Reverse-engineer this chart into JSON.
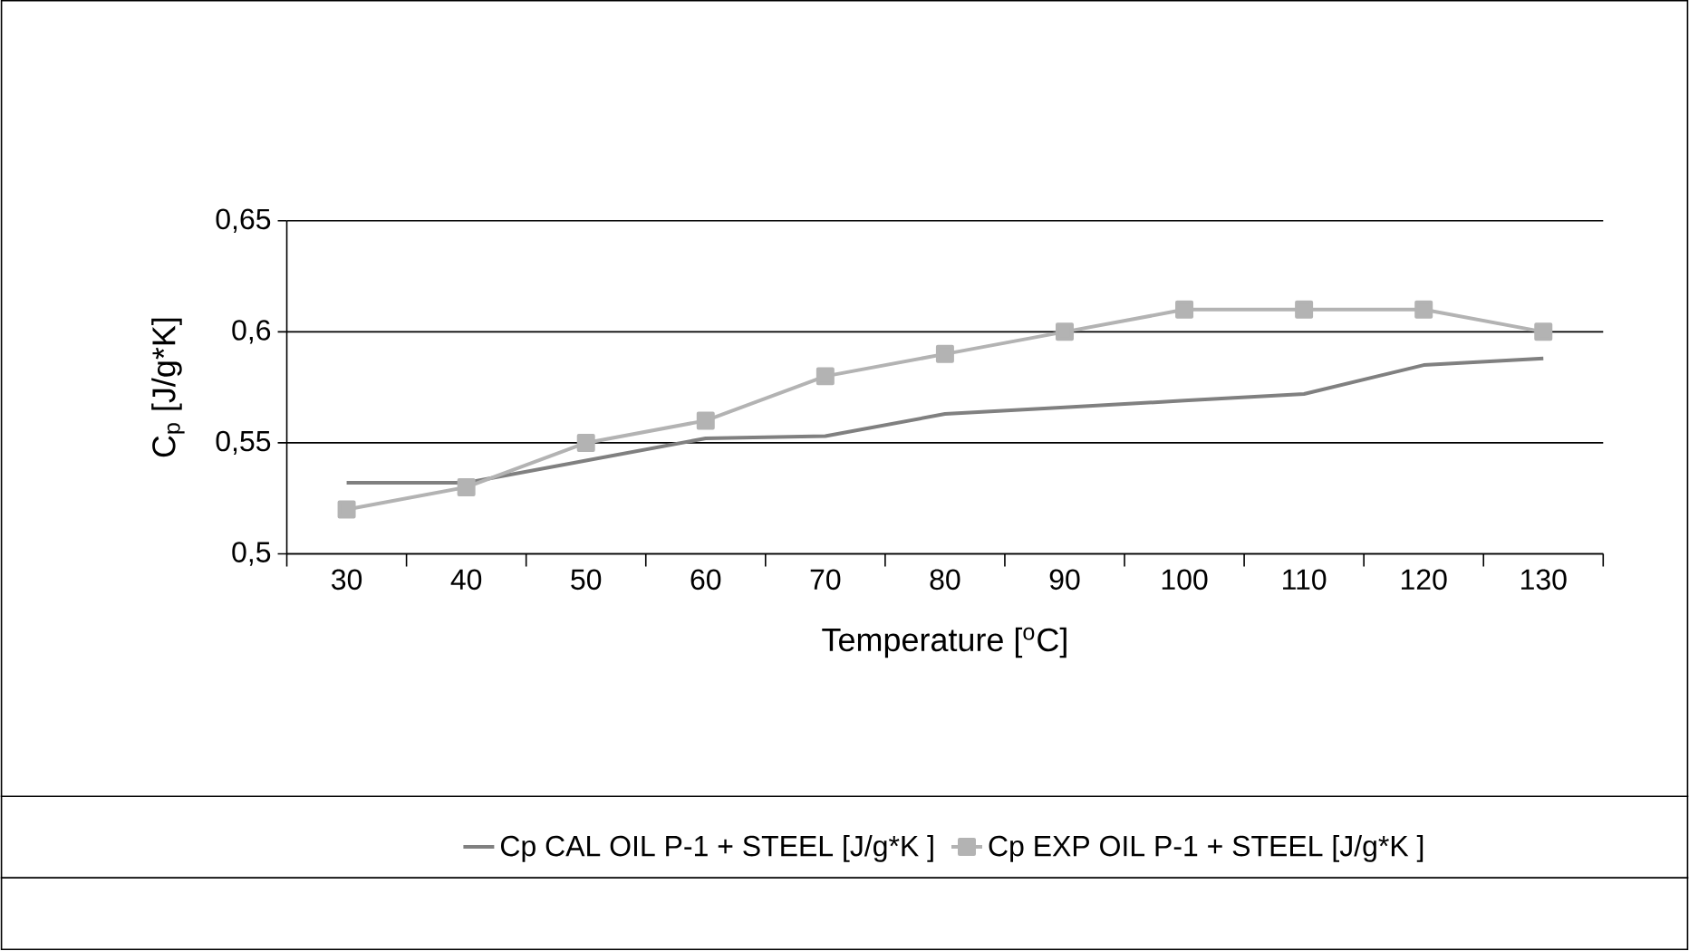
{
  "chart_data": {
    "type": "line",
    "xlabel": "Temperature [$^{o}$C]",
    "ylabel": "C$_{p}$ [J/g*K]",
    "categories": [
      "30",
      "40",
      "50",
      "60",
      "70",
      "80",
      "90",
      "100",
      "110",
      "120",
      "130"
    ],
    "series": [
      {
        "name": "Cp CAL OIL P-1 + STEEL [J/g*K ]",
        "color": "#808080",
        "marker": "none",
        "values": [
          0.532,
          0.532,
          0.542,
          0.552,
          0.553,
          0.563,
          0.566,
          0.569,
          0.572,
          0.585,
          0.588
        ]
      },
      {
        "name": "Cp EXP OIL P-1 + STEEL [J/g*K ]",
        "color": "#b3b3b3",
        "marker": "square",
        "values": [
          0.52,
          0.53,
          0.55,
          0.56,
          0.58,
          0.59,
          0.6,
          0.61,
          0.61,
          0.61,
          0.6
        ]
      }
    ],
    "ylim": [
      0.5,
      0.65
    ],
    "yticks": [
      {
        "value": 0.5,
        "label": "0,5"
      },
      {
        "value": 0.55,
        "label": "0,55"
      },
      {
        "value": 0.6,
        "label": "0,6"
      },
      {
        "value": 0.65,
        "label": "0,65"
      }
    ],
    "grid": "y",
    "legend": "bottom",
    "line_style": "solid"
  }
}
